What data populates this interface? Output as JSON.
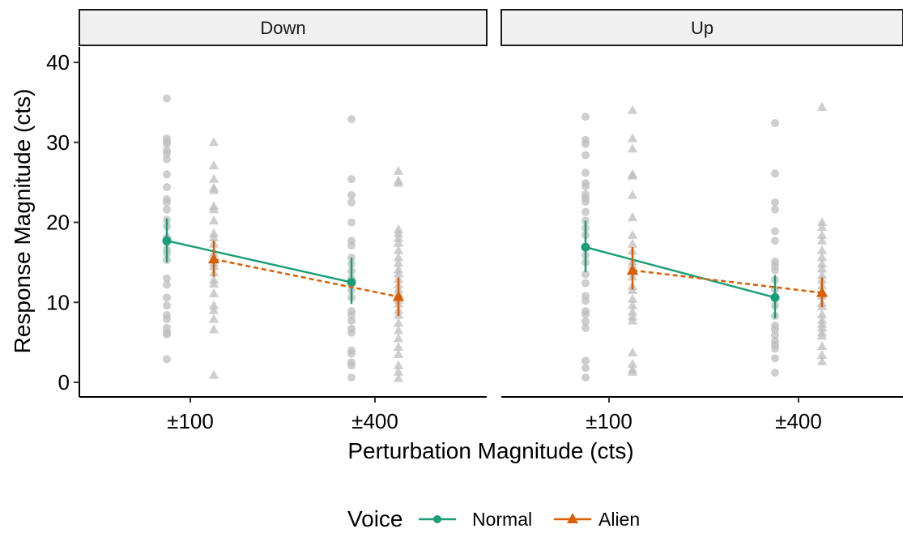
{
  "chart_data": {
    "type": "line",
    "facet_labels": [
      "Down",
      "Up"
    ],
    "categories": [
      "±100",
      "±400"
    ],
    "xlabel": "Perturbation Magnitude (cts)",
    "ylabel": "Response Magnitude (cts)",
    "ylim": [
      0,
      40
    ],
    "yticks": [
      "0",
      "10",
      "20",
      "30",
      "40"
    ],
    "legend": {
      "title": "Voice",
      "position": "bottom",
      "entries": [
        {
          "label": "Normal",
          "color": "#1b9e77",
          "marker": "circle",
          "line": "solid"
        },
        {
          "label": "Alien",
          "color": "#d95f02",
          "marker": "triangle",
          "line": "dashed"
        }
      ]
    },
    "raw_point_color": "#bdbdbd",
    "series": [
      {
        "name": "Normal",
        "panels": [
          {
            "facet": "Down",
            "means": [
              17.7,
              12.5
            ],
            "ci_low": [
              15.0,
              9.8
            ],
            "ci_high": [
              20.5,
              15.6
            ]
          },
          {
            "facet": "Up",
            "means": [
              16.9,
              10.6
            ],
            "ci_low": [
              13.8,
              8.0
            ],
            "ci_high": [
              20.2,
              13.4
            ]
          }
        ]
      },
      {
        "name": "Alien",
        "panels": [
          {
            "facet": "Down",
            "means": [
              15.4,
              10.7
            ],
            "ci_low": [
              13.2,
              8.3
            ],
            "ci_high": [
              17.7,
              13.1
            ]
          },
          {
            "facet": "Up",
            "means": [
              14.0,
              11.2
            ],
            "ci_low": [
              11.6,
              9.4
            ],
            "ci_high": [
              16.9,
              13.1
            ]
          }
        ]
      }
    ],
    "raw_points": [
      {
        "facet": "Down",
        "voice": "Normal",
        "x": "±100",
        "values": [
          35.5,
          30.5,
          30.1,
          29.8,
          29.0,
          28.6,
          27.9,
          26.0,
          24.4,
          22.9,
          22.5,
          21.6,
          20.3,
          19.5,
          18.1,
          17.5,
          16.6,
          16.1,
          15.3,
          13.0,
          12.2,
          10.6,
          9.6,
          8.4,
          7.9,
          6.8,
          6.2,
          6.0,
          2.9
        ]
      },
      {
        "facet": "Down",
        "voice": "Alien",
        "x": "±100",
        "values": [
          30.0,
          27.1,
          25.4,
          24.3,
          24.0,
          22.0,
          21.6,
          20.2,
          18.6,
          18.1,
          17.3,
          16.1,
          14.9,
          14.5,
          13.7,
          12.8,
          12.3,
          11.1,
          9.6,
          9.0,
          7.9,
          6.6,
          0.9
        ]
      },
      {
        "facet": "Down",
        "voice": "Normal",
        "x": "±400",
        "values": [
          32.9,
          25.4,
          23.4,
          22.5,
          20.0,
          17.7,
          17.1,
          15.6,
          14.8,
          13.9,
          13.0,
          12.4,
          11.5,
          10.6,
          8.9,
          8.4,
          7.7,
          6.7,
          6.2,
          4.0,
          3.6,
          2.5,
          2.1,
          0.6
        ]
      },
      {
        "facet": "Down",
        "voice": "Alien",
        "x": "±400",
        "values": [
          26.4,
          25.2,
          24.9,
          19.1,
          18.6,
          18.0,
          17.4,
          16.5,
          15.6,
          14.9,
          14.1,
          13.6,
          12.9,
          12.2,
          11.6,
          11.1,
          10.3,
          9.8,
          9.0,
          8.4,
          7.4,
          6.5,
          5.5,
          4.4,
          3.5,
          2.1,
          1.3,
          0.5
        ]
      },
      {
        "facet": "Up",
        "voice": "Normal",
        "x": "±100",
        "values": [
          33.2,
          30.3,
          29.8,
          28.4,
          26.2,
          24.9,
          24.5,
          23.5,
          23.0,
          22.6,
          21.3,
          20.2,
          19.3,
          18.4,
          16.9,
          15.9,
          15.0,
          13.5,
          12.4,
          10.8,
          10.2,
          8.9,
          8.5,
          7.6,
          6.8,
          2.7,
          1.8,
          0.6
        ]
      },
      {
        "facet": "Up",
        "voice": "Alien",
        "x": "±100",
        "values": [
          34.0,
          30.5,
          29.2,
          26.0,
          25.8,
          23.4,
          20.6,
          18.4,
          17.3,
          16.4,
          15.1,
          14.6,
          13.8,
          13.2,
          12.0,
          11.5,
          10.4,
          9.6,
          8.8,
          8.2,
          7.7,
          3.7,
          2.3,
          1.6,
          1.3
        ]
      },
      {
        "facet": "Up",
        "voice": "Normal",
        "x": "±400",
        "values": [
          32.4,
          26.1,
          22.5,
          21.6,
          18.9,
          17.7,
          15.1,
          14.6,
          14.0,
          12.8,
          11.6,
          9.6,
          8.3,
          7.1,
          6.6,
          5.9,
          5.2,
          4.7,
          4.2,
          3.0,
          1.2
        ]
      },
      {
        "facet": "Up",
        "voice": "Alien",
        "x": "±400",
        "values": [
          34.4,
          20.0,
          19.4,
          18.4,
          17.7,
          16.5,
          15.6,
          14.8,
          14.2,
          13.4,
          12.8,
          12.1,
          10.8,
          9.9,
          9.5,
          8.5,
          7.8,
          7.3,
          6.8,
          6.2,
          5.8,
          4.5,
          3.4,
          2.6
        ]
      }
    ]
  }
}
